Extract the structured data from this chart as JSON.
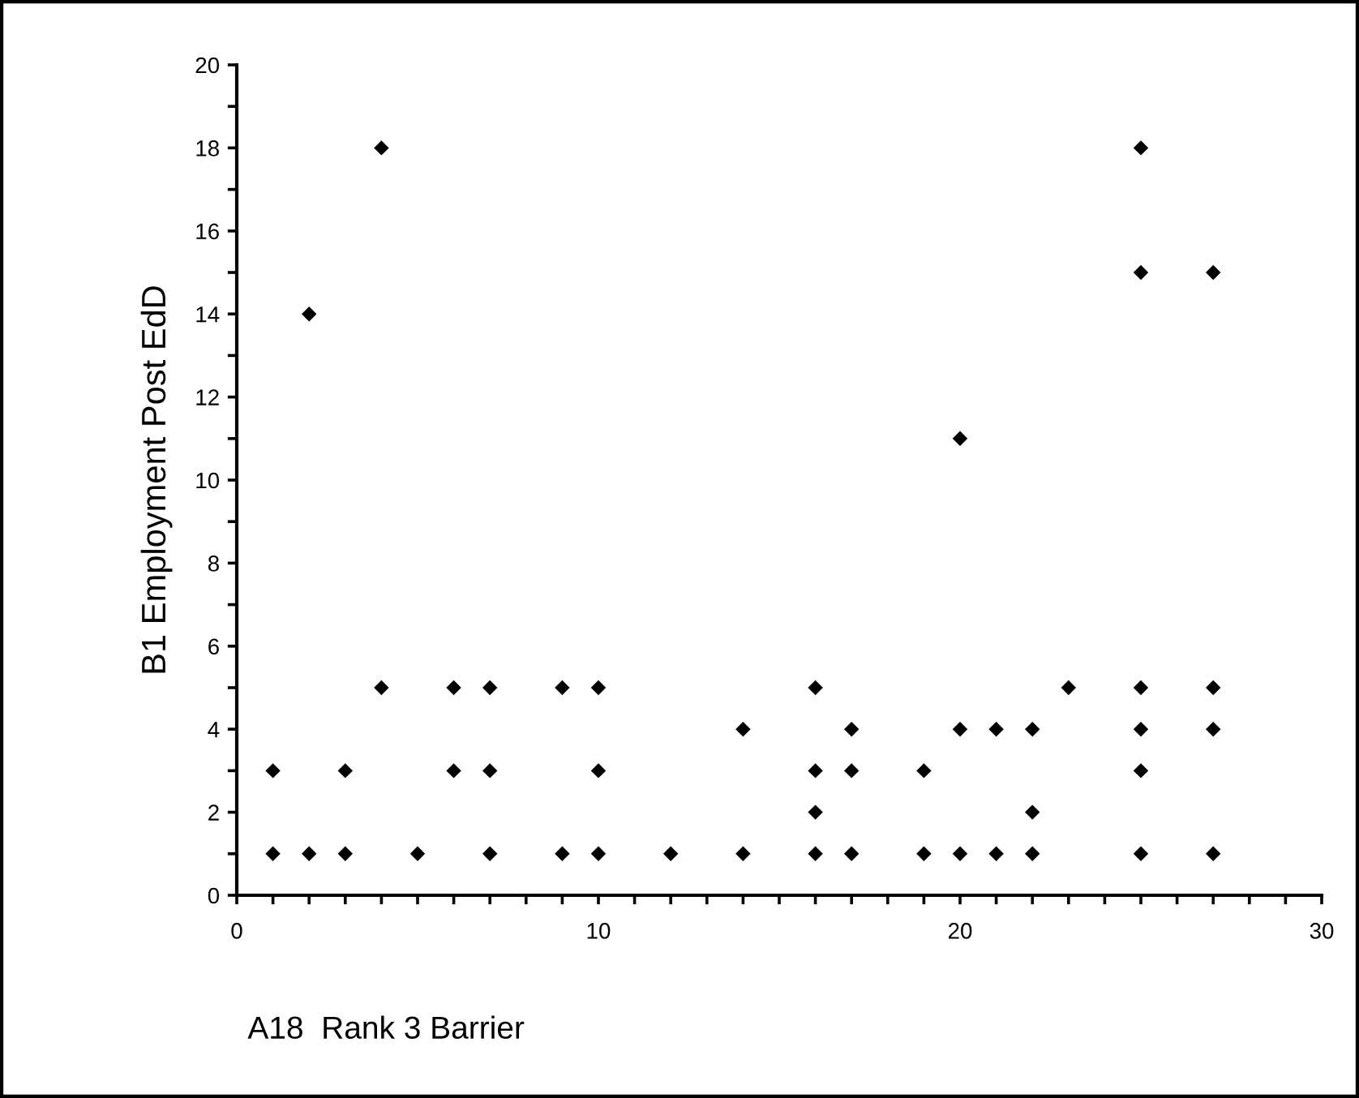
{
  "chart_data": {
    "type": "scatter",
    "xlabel": "A18  Rank 3 Barrier",
    "ylabel": "B1 Employment Post EdD",
    "series": [
      {
        "color": "#000000",
        "x": [
          1,
          2,
          3,
          5,
          7,
          9,
          10,
          12,
          14,
          1,
          3,
          6,
          7,
          10,
          4,
          6,
          7,
          9,
          10,
          14,
          2,
          4,
          16,
          17,
          19,
          20,
          21,
          22,
          25,
          27,
          16,
          22,
          16,
          17,
          19,
          25,
          17,
          20,
          21,
          22,
          25,
          27,
          16,
          23,
          25,
          27,
          20,
          25,
          27,
          25
        ],
        "values": [
          1,
          1,
          1,
          1,
          1,
          1,
          1,
          1,
          1,
          3,
          3,
          3,
          3,
          3,
          5,
          5,
          5,
          5,
          5,
          4,
          14,
          18,
          1,
          1,
          1,
          1,
          1,
          1,
          1,
          1,
          2,
          2,
          3,
          3,
          3,
          3,
          4,
          4,
          4,
          4,
          4,
          4,
          5,
          5,
          5,
          5,
          11,
          15,
          15,
          18
        ]
      }
    ],
    "xlim": [
      0,
      30
    ],
    "ylim": [
      0,
      20
    ],
    "xticks": [
      0,
      {
        "value": 1,
        "label": null
      },
      {
        "value": 2,
        "label": null
      },
      {
        "value": 3,
        "label": null
      },
      {
        "value": 4,
        "label": null
      },
      {
        "value": 5,
        "label": null
      },
      {
        "value": 6,
        "label": null
      },
      {
        "value": 7,
        "label": null
      },
      {
        "value": 8,
        "label": null
      },
      {
        "value": 9,
        "label": null
      },
      10,
      {
        "value": 11,
        "label": null
      },
      {
        "value": 12,
        "label": null
      },
      {
        "value": 13,
        "label": null
      },
      {
        "value": 14,
        "label": null
      },
      {
        "value": 15,
        "label": null
      },
      {
        "value": 16,
        "label": null
      },
      {
        "value": 17,
        "label": null
      },
      {
        "value": 18,
        "label": null
      },
      {
        "value": 19,
        "label": null
      },
      20,
      {
        "value": 21,
        "label": null
      },
      {
        "value": 22,
        "label": null
      },
      {
        "value": 23,
        "label": null
      },
      {
        "value": 24,
        "label": null
      },
      {
        "value": 25,
        "label": null
      },
      {
        "value": 26,
        "label": null
      },
      {
        "value": 27,
        "label": null
      },
      {
        "value": 28,
        "label": null
      },
      {
        "value": 29,
        "label": null
      },
      30
    ],
    "yticks": [
      0,
      {
        "value": 1,
        "label": null
      },
      2,
      {
        "value": 3,
        "label": null
      },
      4,
      {
        "value": 5,
        "label": null
      },
      6,
      {
        "value": 7,
        "label": null
      },
      8,
      {
        "value": 9,
        "label": null
      },
      10,
      {
        "value": 11,
        "label": null
      },
      12,
      {
        "value": 13,
        "label": null
      },
      14,
      {
        "value": 15,
        "label": null
      },
      16,
      {
        "value": 17,
        "label": null
      },
      18,
      {
        "value": 19,
        "label": null
      },
      20
    ],
    "marker": "diamond",
    "grid": false
  }
}
